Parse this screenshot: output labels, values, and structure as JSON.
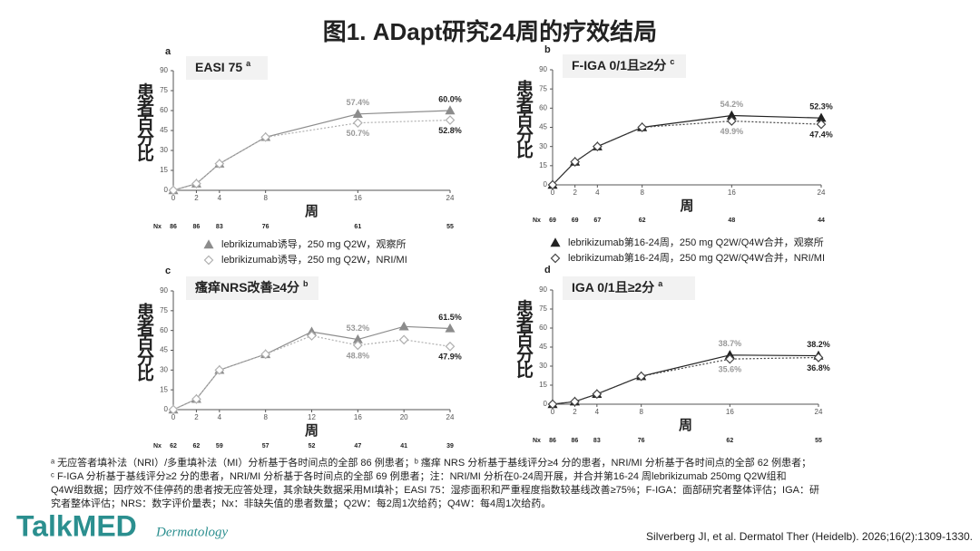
{
  "title": "图1. ADapt研究24周的疗效结局",
  "chart_data": [
    {
      "type": "line",
      "panel": "a",
      "title": "EASI 75",
      "title_note": "a",
      "ylabel": "患者百分比",
      "xlabel": "周",
      "nx_label": "Nx",
      "x": [
        0,
        2,
        4,
        8,
        16,
        24
      ],
      "xticks": [
        0,
        2,
        4,
        8,
        16,
        24
      ],
      "xlim": [
        0,
        24
      ],
      "ylim": [
        0,
        90
      ],
      "yticks": [
        0,
        15,
        30,
        45,
        60,
        75,
        90
      ],
      "nx": [
        86,
        86,
        83,
        76,
        61,
        55
      ],
      "series": [
        {
          "name": "lebrikizumab诱导，250 mg Q2W，观察所",
          "color": "#8c8c8c",
          "marker": "triangle",
          "dash": false,
          "values": [
            0,
            5,
            20,
            40,
            57.4,
            60.0
          ],
          "value_labels": [
            null,
            null,
            null,
            null,
            "57.4%",
            "60.0%"
          ]
        },
        {
          "name": "lebrikizumab诱导，250 mg Q2W，NRI/MI",
          "color": "#b0b0b0",
          "marker": "diamond",
          "dash": true,
          "values": [
            0,
            5,
            20,
            40,
            50.7,
            52.8
          ],
          "value_labels": [
            null,
            null,
            null,
            null,
            "50.7%",
            "52.8%"
          ]
        }
      ]
    },
    {
      "type": "line",
      "panel": "b",
      "title": "F-IGA 0/1且≥2分",
      "title_note": "c",
      "ylabel": "患者百分比",
      "xlabel": "周",
      "nx_label": "Nx",
      "x": [
        0,
        2,
        4,
        8,
        16,
        24
      ],
      "xticks": [
        0,
        2,
        4,
        8,
        16,
        24
      ],
      "xlim": [
        0,
        24
      ],
      "ylim": [
        0,
        90
      ],
      "yticks": [
        0,
        15,
        30,
        45,
        60,
        75,
        90
      ],
      "nx": [
        69,
        69,
        67,
        62,
        48,
        44
      ],
      "series": [
        {
          "name": "lebrikizumab第16-24周，250 mg Q2W/Q4W合并，观察所",
          "color": "#222222",
          "marker": "triangle",
          "dash": false,
          "values": [
            0,
            18,
            30,
            45,
            54.2,
            52.3
          ],
          "value_labels": [
            null,
            null,
            null,
            null,
            "54.2%",
            "52.3%"
          ]
        },
        {
          "name": "lebrikizumab第16-24周，250 mg Q2W/Q4W合并，NRI/MI",
          "color": "#444444",
          "marker": "diamond",
          "dash": true,
          "values": [
            0,
            18,
            30,
            45,
            49.9,
            47.4
          ],
          "value_labels": [
            null,
            null,
            null,
            null,
            "49.9%",
            "47.4%"
          ]
        }
      ]
    },
    {
      "type": "line",
      "panel": "c",
      "title": "瘙痒NRS改善≥4分",
      "title_note": "b",
      "ylabel": "患者百分比",
      "xlabel": "周",
      "nx_label": "Nx",
      "x": [
        0,
        2,
        4,
        8,
        12,
        16,
        20,
        24
      ],
      "xticks": [
        0,
        2,
        4,
        8,
        12,
        16,
        20,
        24
      ],
      "xlim": [
        0,
        24
      ],
      "ylim": [
        0,
        90
      ],
      "yticks": [
        0,
        15,
        30,
        45,
        60,
        75,
        90
      ],
      "nx": [
        62,
        62,
        59,
        57,
        52,
        47,
        41,
        39
      ],
      "series": [
        {
          "color": "#8c8c8c",
          "marker": "triangle",
          "dash": false,
          "values": [
            0,
            8,
            30,
            42,
            59,
            53.2,
            63,
            61.5
          ],
          "value_labels": [
            null,
            null,
            null,
            null,
            null,
            "53.2%",
            null,
            "61.5%"
          ]
        },
        {
          "color": "#b0b0b0",
          "marker": "diamond",
          "dash": true,
          "values": [
            0,
            8,
            30,
            42,
            56,
            48.8,
            53,
            47.9
          ],
          "value_labels": [
            null,
            null,
            null,
            null,
            null,
            "48.8%",
            null,
            "47.9%"
          ]
        }
      ]
    },
    {
      "type": "line",
      "panel": "d",
      "title": "IGA 0/1且≥2分",
      "title_note": "a",
      "ylabel": "患者百分比",
      "xlabel": "周",
      "nx_label": "Nx",
      "x": [
        0,
        2,
        4,
        8,
        16,
        24
      ],
      "xticks": [
        0,
        2,
        4,
        8,
        16,
        24
      ],
      "xlim": [
        0,
        24
      ],
      "ylim": [
        0,
        90
      ],
      "yticks": [
        0,
        15,
        30,
        45,
        60,
        75,
        90
      ],
      "nx": [
        86,
        86,
        83,
        76,
        62,
        55
      ],
      "series": [
        {
          "color": "#222222",
          "marker": "triangle",
          "dash": false,
          "values": [
            0,
            2,
            8,
            22,
            38.7,
            38.2
          ],
          "value_labels": [
            null,
            null,
            null,
            null,
            "38.7%",
            "38.2%"
          ]
        },
        {
          "color": "#444444",
          "marker": "diamond",
          "dash": true,
          "values": [
            0,
            2,
            8,
            22,
            35.6,
            36.8
          ],
          "value_labels": [
            null,
            null,
            null,
            null,
            "35.6%",
            "36.8%"
          ]
        }
      ]
    }
  ],
  "footnotes": [
    "ᵃ 无应答者填补法（NRI）/多重填补法（MI）分析基于各时间点的全部 86 例患者；ᵇ 瘙痒 NRS 分析基于基线评分≥4 分的患者，NRI/MI 分析基于各时间点的全部 62 例患者；",
    "ᶜ F-IGA 分析基于基线评分≥2 分的患者，NRI/MI 分析基于各时间点的全部 69 例患者；注：NRI/MI 分析在0-24周开展，并合并第16-24 周lebrikizumab 250mg Q2W组和",
    "Q4W组数据；因疗效不佳停药的患者按无应答处理，其余缺失数据采用MI填补；EASI 75：湿疹面积和严重程度指数较基线改善≥75%；F-IGA：面部研究者整体评估；IGA：研",
    "究者整体评估；NRS：数字评价量表；Nx：非缺失值的患者数量；Q2W：每2周1次给药；Q4W：每4周1次给药。"
  ],
  "logo": {
    "brand": "TalkMED",
    "sub": "Dermatology"
  },
  "citation": "Silverberg JI, et al. Dermatol Ther (Heidelb). 2026;16(2):1309-1330."
}
